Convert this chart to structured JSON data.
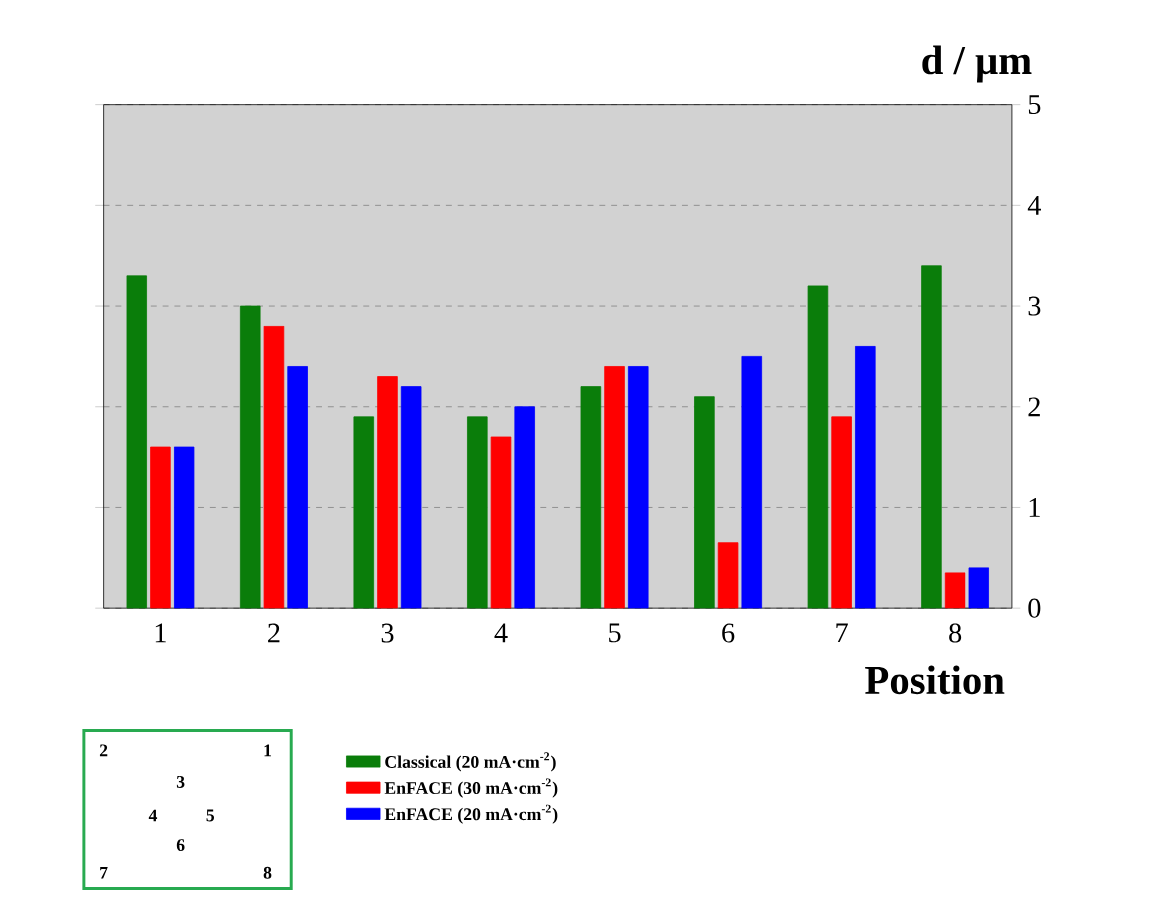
{
  "chart_data": {
    "type": "bar",
    "xlabel": "Position",
    "ylabel": "d / μm",
    "categories": [
      "1",
      "2",
      "3",
      "4",
      "5",
      "6",
      "7",
      "8"
    ],
    "series": [
      {
        "name": "Classical (20 mA·cm$^{-2}$)",
        "color": "#0a7d0a",
        "values": [
          3.3,
          3.0,
          1.9,
          1.9,
          2.2,
          2.1,
          3.2,
          3.4
        ]
      },
      {
        "name": "EnFACE (30 mA·cm$^{-2}$)",
        "color": "#ff0000",
        "values": [
          1.6,
          2.8,
          2.3,
          1.7,
          2.4,
          0.65,
          1.9,
          0.35
        ]
      },
      {
        "name": "EnFACE (20 mA·cm$^{-2}$)",
        "color": "#0000ff",
        "values": [
          1.6,
          2.4,
          2.2,
          2.0,
          2.4,
          2.5,
          2.6,
          0.4
        ]
      }
    ],
    "ylim": [
      0,
      5
    ],
    "yticks": [
      0,
      1,
      2,
      3,
      4,
      5
    ],
    "grid": "y",
    "legend": "bottom",
    "annotations": [
      "2",
      "1",
      "3",
      "4",
      "5",
      "6",
      "7",
      "8"
    ]
  }
}
